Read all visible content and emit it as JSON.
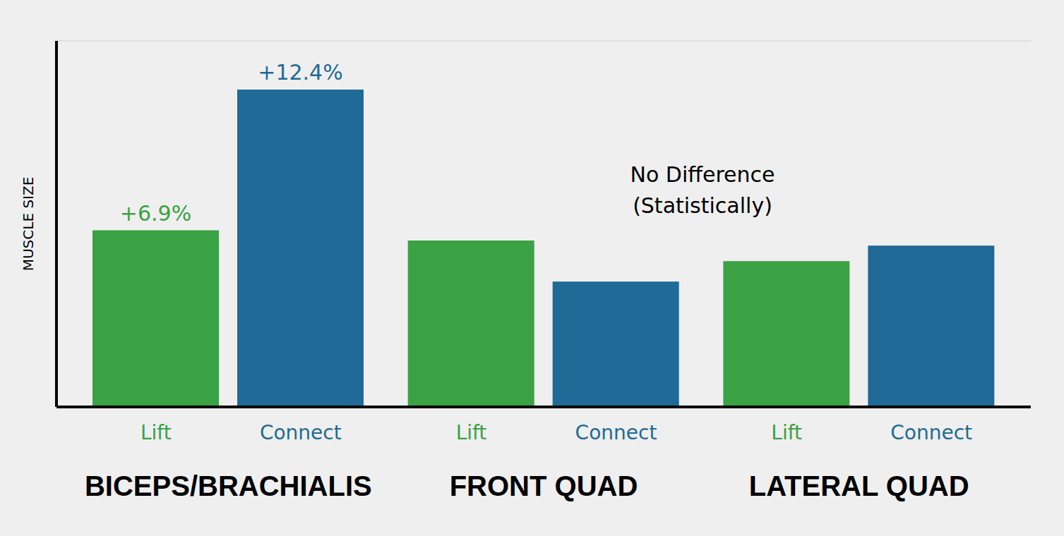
{
  "chart_data": {
    "type": "bar",
    "ylabel": "MUSCLE SIZE",
    "categories": [
      "BICEPS/BRACHIALIS",
      "FRONT QUAD",
      "LATERAL QUAD"
    ],
    "series": [
      {
        "name": "Lift",
        "color": "#3ba244",
        "values": [
          6.9,
          6.5,
          5.7
        ],
        "value_labels": [
          "+6.9%",
          null,
          null
        ]
      },
      {
        "name": "Connect",
        "color": "#1f6a96",
        "values": [
          12.4,
          4.9,
          6.3
        ],
        "value_labels": [
          "+12.4%",
          null,
          null
        ]
      }
    ],
    "ylim": [
      0,
      14.3
    ],
    "yticks": [
      0,
      3.6,
      7.1,
      10.7,
      14.3
    ],
    "grid": true,
    "data_labels": true,
    "tick_labels": "x",
    "annotation": [
      "No Difference",
      "(Statistically)"
    ]
  }
}
